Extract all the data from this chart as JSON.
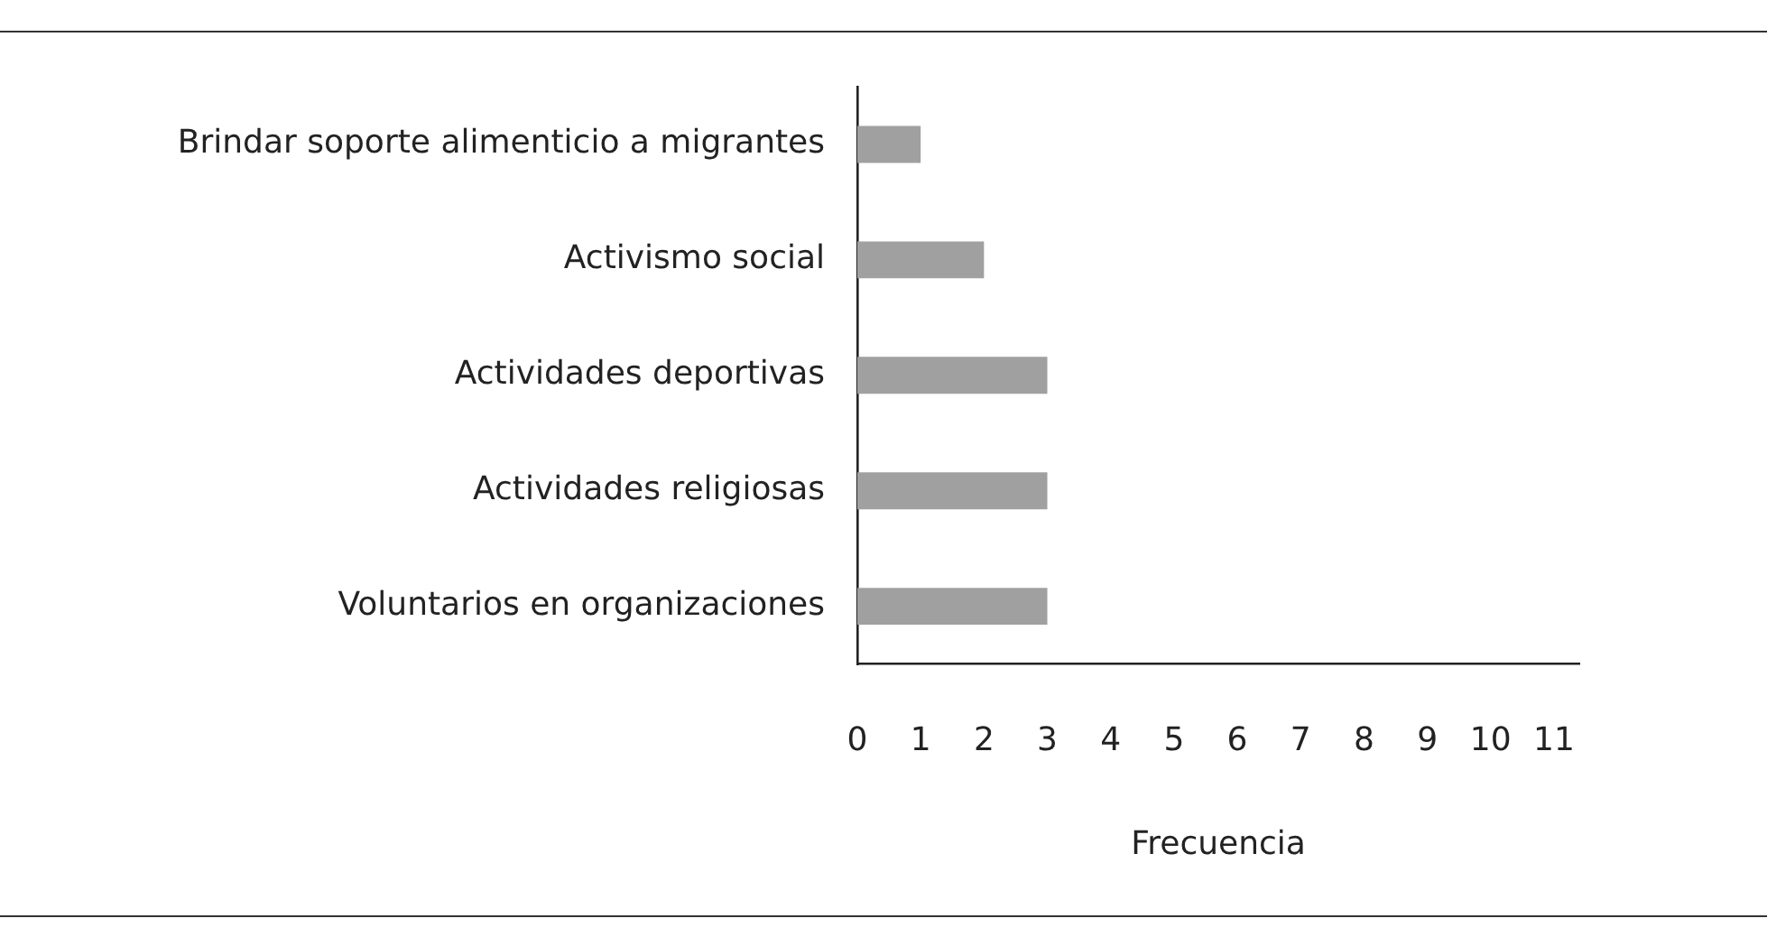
{
  "chart_data": {
    "type": "bar",
    "orientation": "horizontal",
    "xlabel": "Frecuencia",
    "categories": [
      "Brindar soporte alimenticio a migrantes",
      "Activismo social",
      "Actividades deportivas",
      "Actividades religiosas",
      "Voluntarios en organizaciones"
    ],
    "values": [
      1,
      2,
      3,
      3,
      3
    ],
    "color": "#a0a0a0",
    "xlim": [
      0,
      11.4
    ],
    "xticks": [
      0,
      1,
      2,
      3,
      4,
      5,
      6,
      7,
      8,
      9,
      10,
      11
    ],
    "grid": false,
    "legend": false
  }
}
